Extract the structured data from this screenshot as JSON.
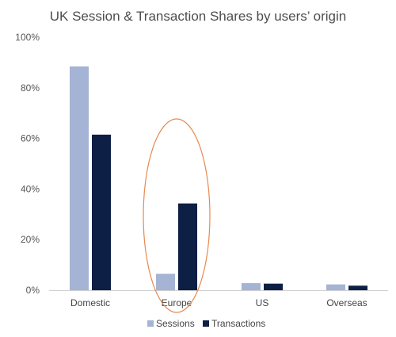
{
  "chart_data": {
    "type": "bar",
    "title": "UK Session & Transaction Shares by users’ origin",
    "categories": [
      "Domestic",
      "Europe",
      "US",
      "Overseas"
    ],
    "series": [
      {
        "name": "Sessions",
        "values": [
          88.5,
          6.5,
          2.8,
          2.3
        ],
        "color": "#a5b4d4"
      },
      {
        "name": "Transactions",
        "values": [
          61.5,
          34.3,
          2.6,
          1.8
        ],
        "color": "#0e1f45"
      }
    ],
    "ylim": [
      0,
      100
    ],
    "yticks": [
      "0%",
      "20%",
      "40%",
      "60%",
      "80%",
      "100%"
    ],
    "ytick_values": [
      0,
      20,
      40,
      60,
      80,
      100
    ],
    "grid": false,
    "legend_position": "bottom-center",
    "annotation": {
      "type": "ellipse",
      "target_category": "Europe",
      "color": "#e8894f"
    }
  }
}
